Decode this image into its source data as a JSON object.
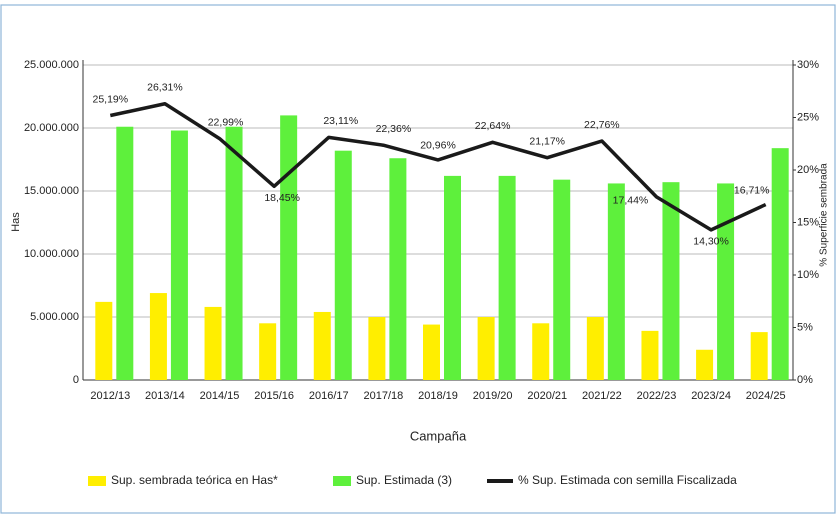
{
  "chart_data": {
    "type": "bar-line",
    "x_label": "Campaña",
    "y_label": "Has",
    "y2_label": "% Superficie sembrada",
    "categories": [
      "2012/13",
      "2013/14",
      "2014/15",
      "2015/16",
      "2016/17",
      "2017/18",
      "2018/19",
      "2019/20",
      "2020/21",
      "2021/22",
      "2022/23",
      "2023/24",
      "2024/25"
    ],
    "series": [
      {
        "name": "Sup. sembrada teórica en Has*",
        "type": "bar",
        "color": "#ffee00",
        "values": [
          6200000,
          6900000,
          5800000,
          4500000,
          5400000,
          5000000,
          4400000,
          5000000,
          4500000,
          5000000,
          3900000,
          2400000,
          3800000
        ]
      },
      {
        "name": "Sup. Estimada (3)",
        "type": "bar",
        "color": "#5ef03c",
        "values": [
          20100000,
          19800000,
          20100000,
          21000000,
          18200000,
          17600000,
          16200000,
          16200000,
          15900000,
          15600000,
          15700000,
          15600000,
          18400000
        ]
      },
      {
        "name": "% Sup. Estimada con semilla Fiscalizada",
        "type": "line",
        "axis": "y2",
        "color": "#1a1a1a",
        "values": [
          25.19,
          26.31,
          22.99,
          18.45,
          23.11,
          22.36,
          20.96,
          22.64,
          21.17,
          22.76,
          17.44,
          14.3,
          16.71
        ],
        "value_labels": [
          "25,19%",
          "26,31%",
          "22,99%",
          "18,45%",
          "23,11%",
          "22,36%",
          "20,96%",
          "22,64%",
          "21,17%",
          "22,76%",
          "17,44%",
          "14,30%",
          "16,71%"
        ]
      }
    ],
    "ylim": [
      0,
      25000000
    ],
    "yticks": [
      0,
      {
        "value": 5000000,
        "label": "5.000.000"
      },
      {
        "value": 10000000,
        "label": "10.000.000"
      },
      {
        "value": 15000000,
        "label": "15.000.000"
      },
      {
        "value": 20000000,
        "label": "20.000.000"
      },
      {
        "value": 25000000,
        "label": "25.000.000"
      }
    ],
    "y2lim": [
      0,
      30
    ],
    "y2ticks": [
      {
        "value": 0,
        "label": "0%"
      },
      {
        "value": 5,
        "label": "5%"
      },
      {
        "value": 10,
        "label": "10%"
      },
      {
        "value": 15,
        "label": "15%"
      },
      {
        "value": 20,
        "label": "20%"
      },
      {
        "value": 25,
        "label": "25%"
      },
      {
        "value": 30,
        "label": "30%"
      }
    ],
    "grid": true,
    "legend": "bottom"
  }
}
